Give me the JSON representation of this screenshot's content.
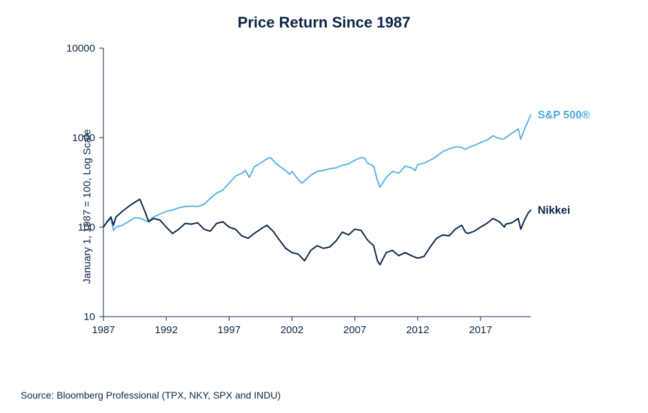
{
  "chart": {
    "type": "line",
    "title": "Price Return Since 1987",
    "title_fontsize": 22,
    "title_color": "#0b2545",
    "y_axis_label": "January 1, 1987 = 100, Log Scale",
    "y_axis_label_fontsize": 15,
    "source_text": "Source: Bloomberg Professional (TPX, NKY, SPX and INDU)",
    "source_fontsize": 14,
    "background_color": "#ffffff",
    "axis_color": "#0b2545",
    "tick_fontsize": 15,
    "x": {
      "min": 1987,
      "max": 2021,
      "ticks": [
        1987,
        1992,
        1997,
        2002,
        2007,
        2012,
        2017
      ]
    },
    "y": {
      "scale": "log",
      "min": 10,
      "max": 10000,
      "ticks": [
        10,
        100,
        1000,
        10000
      ]
    },
    "line_width": 2,
    "series": [
      {
        "name": "sp500",
        "label": "S&P 500®",
        "color": "#5ab3e6",
        "label_color": "#4ba9df",
        "label_fontsize": 16,
        "points": [
          [
            1987.0,
            100
          ],
          [
            1987.2,
            110
          ],
          [
            1987.4,
            118
          ],
          [
            1987.6,
            125
          ],
          [
            1987.8,
            92
          ],
          [
            1988.0,
            100
          ],
          [
            1988.5,
            105
          ],
          [
            1989.0,
            115
          ],
          [
            1989.5,
            128
          ],
          [
            1990.0,
            125
          ],
          [
            1990.5,
            115
          ],
          [
            1991.0,
            130
          ],
          [
            1991.5,
            140
          ],
          [
            1992.0,
            150
          ],
          [
            1992.5,
            155
          ],
          [
            1993.0,
            165
          ],
          [
            1993.5,
            170
          ],
          [
            1994.0,
            172
          ],
          [
            1994.5,
            170
          ],
          [
            1995.0,
            180
          ],
          [
            1995.5,
            210
          ],
          [
            1996.0,
            240
          ],
          [
            1996.5,
            260
          ],
          [
            1997.0,
            310
          ],
          [
            1997.5,
            370
          ],
          [
            1998.0,
            400
          ],
          [
            1998.3,
            430
          ],
          [
            1998.6,
            360
          ],
          [
            1999.0,
            470
          ],
          [
            1999.5,
            520
          ],
          [
            2000.0,
            580
          ],
          [
            2000.3,
            600
          ],
          [
            2000.7,
            520
          ],
          [
            2001.0,
            480
          ],
          [
            2001.5,
            430
          ],
          [
            2001.8,
            390
          ],
          [
            2002.0,
            420
          ],
          [
            2002.5,
            340
          ],
          [
            2002.8,
            310
          ],
          [
            2003.0,
            330
          ],
          [
            2003.5,
            380
          ],
          [
            2004.0,
            420
          ],
          [
            2004.5,
            430
          ],
          [
            2005.0,
            450
          ],
          [
            2005.5,
            460
          ],
          [
            2006.0,
            490
          ],
          [
            2006.5,
            510
          ],
          [
            2007.0,
            560
          ],
          [
            2007.5,
            600
          ],
          [
            2007.8,
            590
          ],
          [
            2008.0,
            520
          ],
          [
            2008.5,
            480
          ],
          [
            2008.8,
            330
          ],
          [
            2009.0,
            280
          ],
          [
            2009.5,
            360
          ],
          [
            2010.0,
            420
          ],
          [
            2010.5,
            400
          ],
          [
            2011.0,
            480
          ],
          [
            2011.5,
            460
          ],
          [
            2011.8,
            430
          ],
          [
            2012.0,
            500
          ],
          [
            2012.5,
            520
          ],
          [
            2013.0,
            560
          ],
          [
            2013.5,
            620
          ],
          [
            2014.0,
            700
          ],
          [
            2014.5,
            750
          ],
          [
            2015.0,
            790
          ],
          [
            2015.5,
            780
          ],
          [
            2015.8,
            740
          ],
          [
            2016.0,
            770
          ],
          [
            2016.5,
            820
          ],
          [
            2017.0,
            880
          ],
          [
            2017.5,
            940
          ],
          [
            2018.0,
            1050
          ],
          [
            2018.3,
            1000
          ],
          [
            2018.8,
            960
          ],
          [
            2019.0,
            1000
          ],
          [
            2019.5,
            1120
          ],
          [
            2020.0,
            1250
          ],
          [
            2020.2,
            960
          ],
          [
            2020.5,
            1250
          ],
          [
            2020.8,
            1550
          ],
          [
            2021.0,
            1800
          ]
        ]
      },
      {
        "name": "nikkei",
        "label": "Nikkei",
        "color": "#0b2545",
        "label_color": "#0b2545",
        "label_fontsize": 16,
        "points": [
          [
            1987.0,
            100
          ],
          [
            1987.3,
            115
          ],
          [
            1987.6,
            130
          ],
          [
            1987.8,
            105
          ],
          [
            1988.0,
            130
          ],
          [
            1988.5,
            150
          ],
          [
            1989.0,
            170
          ],
          [
            1989.5,
            190
          ],
          [
            1989.9,
            205
          ],
          [
            1990.0,
            190
          ],
          [
            1990.3,
            150
          ],
          [
            1990.6,
            115
          ],
          [
            1991.0,
            125
          ],
          [
            1991.5,
            120
          ],
          [
            1992.0,
            100
          ],
          [
            1992.5,
            85
          ],
          [
            1993.0,
            95
          ],
          [
            1993.5,
            110
          ],
          [
            1994.0,
            108
          ],
          [
            1994.5,
            112
          ],
          [
            1995.0,
            95
          ],
          [
            1995.5,
            90
          ],
          [
            1996.0,
            110
          ],
          [
            1996.5,
            115
          ],
          [
            1997.0,
            100
          ],
          [
            1997.5,
            95
          ],
          [
            1998.0,
            80
          ],
          [
            1998.5,
            75
          ],
          [
            1999.0,
            85
          ],
          [
            1999.5,
            95
          ],
          [
            2000.0,
            105
          ],
          [
            2000.5,
            90
          ],
          [
            2001.0,
            72
          ],
          [
            2001.5,
            58
          ],
          [
            2002.0,
            52
          ],
          [
            2002.5,
            50
          ],
          [
            2003.0,
            42
          ],
          [
            2003.5,
            55
          ],
          [
            2004.0,
            62
          ],
          [
            2004.5,
            58
          ],
          [
            2005.0,
            60
          ],
          [
            2005.5,
            70
          ],
          [
            2006.0,
            88
          ],
          [
            2006.5,
            82
          ],
          [
            2007.0,
            95
          ],
          [
            2007.5,
            92
          ],
          [
            2008.0,
            72
          ],
          [
            2008.5,
            62
          ],
          [
            2008.8,
            42
          ],
          [
            2009.0,
            38
          ],
          [
            2009.5,
            52
          ],
          [
            2010.0,
            55
          ],
          [
            2010.5,
            48
          ],
          [
            2011.0,
            52
          ],
          [
            2011.5,
            48
          ],
          [
            2012.0,
            45
          ],
          [
            2012.5,
            47
          ],
          [
            2013.0,
            60
          ],
          [
            2013.5,
            75
          ],
          [
            2014.0,
            82
          ],
          [
            2014.5,
            80
          ],
          [
            2015.0,
            95
          ],
          [
            2015.5,
            105
          ],
          [
            2015.8,
            88
          ],
          [
            2016.0,
            85
          ],
          [
            2016.5,
            90
          ],
          [
            2017.0,
            100
          ],
          [
            2017.5,
            110
          ],
          [
            2018.0,
            125
          ],
          [
            2018.5,
            115
          ],
          [
            2018.9,
            100
          ],
          [
            2019.0,
            108
          ],
          [
            2019.5,
            112
          ],
          [
            2020.0,
            125
          ],
          [
            2020.2,
            95
          ],
          [
            2020.5,
            120
          ],
          [
            2020.8,
            145
          ],
          [
            2021.0,
            155
          ]
        ]
      }
    ]
  }
}
